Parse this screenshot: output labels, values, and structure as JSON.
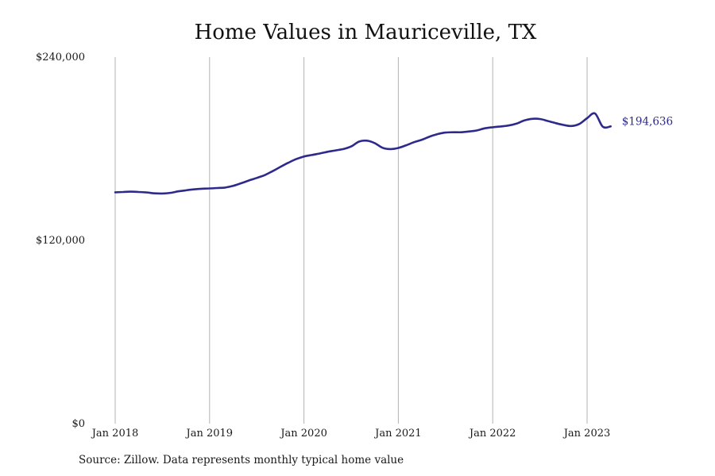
{
  "chart_data": {
    "type": "line",
    "title": "Home Values in Mauriceville, TX",
    "xlabel": "",
    "ylabel": "",
    "ylim": [
      0,
      240000
    ],
    "y_ticks": [
      0,
      120000,
      240000
    ],
    "y_tick_labels": [
      "$0",
      "$120,000",
      "$240,000"
    ],
    "x_ticks": [
      "2018-01",
      "2019-01",
      "2020-01",
      "2021-01",
      "2022-01",
      "2023-01"
    ],
    "x_tick_labels": [
      "Jan 2018",
      "Jan 2019",
      "Jan 2020",
      "Jan 2021",
      "Jan 2022",
      "Jan 2023"
    ],
    "xlim": [
      "2018-01",
      "2023-04"
    ],
    "grid": "vertical",
    "line_color": "#2e2a8c",
    "end_label": "$194,636",
    "series": [
      {
        "x": [
          "2018-01",
          "2018-02",
          "2018-03",
          "2018-04",
          "2018-05",
          "2018-06",
          "2018-07",
          "2018-08",
          "2018-09",
          "2018-10",
          "2018-11",
          "2018-12",
          "2019-01",
          "2019-02",
          "2019-03",
          "2019-04",
          "2019-05",
          "2019-06",
          "2019-07",
          "2019-08",
          "2019-09",
          "2019-10",
          "2019-11",
          "2019-12",
          "2020-01",
          "2020-02",
          "2020-03",
          "2020-04",
          "2020-05",
          "2020-06",
          "2020-07",
          "2020-08",
          "2020-09",
          "2020-10",
          "2020-11",
          "2020-12",
          "2021-01",
          "2021-02",
          "2021-03",
          "2021-04",
          "2021-05",
          "2021-06",
          "2021-07",
          "2021-08",
          "2021-09",
          "2021-10",
          "2021-11",
          "2021-12",
          "2022-01",
          "2022-02",
          "2022-03",
          "2022-04",
          "2022-05",
          "2022-06",
          "2022-07",
          "2022-08",
          "2022-09",
          "2022-10",
          "2022-11",
          "2022-12",
          "2023-01",
          "2023-02",
          "2023-03",
          "2023-04"
        ],
        "values": [
          151500,
          151700,
          151900,
          151700,
          151400,
          150800,
          150700,
          151100,
          152100,
          152800,
          153400,
          153800,
          154000,
          154300,
          154600,
          155700,
          157400,
          159200,
          160900,
          162700,
          165300,
          168100,
          170800,
          173200,
          174900,
          175900,
          176900,
          178000,
          178900,
          179800,
          181500,
          184700,
          185300,
          183700,
          180600,
          179800,
          180500,
          182300,
          184300,
          185900,
          188000,
          189600,
          190600,
          190800,
          190800,
          191300,
          192000,
          193400,
          194100,
          194600,
          195200,
          196400,
          198500,
          199600,
          199500,
          198200,
          196800,
          195600,
          194900,
          196200,
          200000,
          203100,
          194400,
          194636
        ]
      }
    ]
  },
  "source_note": "Source: Zillow. Data represents monthly typical home value"
}
